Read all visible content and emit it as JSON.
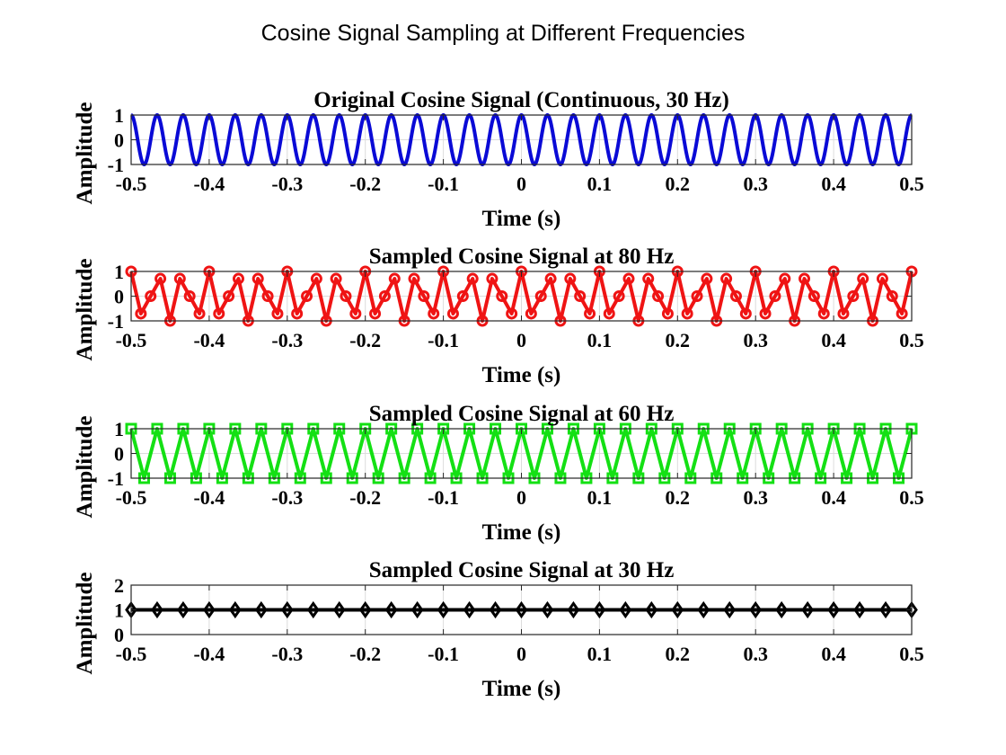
{
  "figure": {
    "title": "Cosine Signal Sampling at Different Frequencies"
  },
  "chart_data": [
    {
      "type": "line",
      "title": "Original Cosine Signal (Continuous, 30 Hz)",
      "xlabel": "Time (s)",
      "ylabel": "Amplitude",
      "xlim": [
        -0.5,
        0.5
      ],
      "ylim": [
        -1,
        1
      ],
      "xticks": [
        "-0.5",
        "-0.4",
        "-0.3",
        "-0.2",
        "-0.1",
        "0",
        "0.1",
        "0.2",
        "0.3",
        "0.4",
        "0.5"
      ],
      "yticks": [
        "-1",
        "0",
        "1"
      ],
      "grid": true,
      "series": [
        {
          "color": "#0a0ad6",
          "marker": "none",
          "signal": "cos",
          "frequency_hz": 30,
          "sample_rate_hz": null,
          "x_range": [
            -0.5,
            0.5
          ]
        }
      ]
    },
    {
      "type": "line",
      "title": "Sampled Cosine Signal at 80 Hz",
      "xlabel": "Time (s)",
      "ylabel": "Amplitude",
      "xlim": [
        -0.5,
        0.5
      ],
      "ylim": [
        -1,
        1
      ],
      "xticks": [
        "-0.5",
        "-0.4",
        "-0.3",
        "-0.2",
        "-0.1",
        "0",
        "0.1",
        "0.2",
        "0.3",
        "0.4",
        "0.5"
      ],
      "yticks": [
        "-1",
        "0",
        "1"
      ],
      "grid": true,
      "series": [
        {
          "color": "#ef1414",
          "marker": "circle",
          "signal": "cos",
          "frequency_hz": 30,
          "sample_rate_hz": 80,
          "x_range": [
            -0.5,
            0.5
          ]
        }
      ]
    },
    {
      "type": "line",
      "title": "Sampled Cosine Signal at 60 Hz",
      "xlabel": "Time (s)",
      "ylabel": "Amplitude",
      "xlim": [
        -0.5,
        0.5
      ],
      "ylim": [
        -1,
        1
      ],
      "xticks": [
        "-0.5",
        "-0.4",
        "-0.3",
        "-0.2",
        "-0.1",
        "0",
        "0.1",
        "0.2",
        "0.3",
        "0.4",
        "0.5"
      ],
      "yticks": [
        "-1",
        "0",
        "1"
      ],
      "grid": true,
      "series": [
        {
          "color": "#14e014",
          "marker": "square",
          "signal": "cos",
          "frequency_hz": 30,
          "sample_rate_hz": 60,
          "x_range": [
            -0.5,
            0.5
          ]
        }
      ]
    },
    {
      "type": "line",
      "title": "Sampled Cosine Signal at 30 Hz",
      "xlabel": "Time (s)",
      "ylabel": "Amplitude",
      "xlim": [
        -0.5,
        0.5
      ],
      "ylim": [
        0,
        2
      ],
      "xticks": [
        "-0.5",
        "-0.4",
        "-0.3",
        "-0.2",
        "-0.1",
        "0",
        "0.1",
        "0.2",
        "0.3",
        "0.4",
        "0.5"
      ],
      "yticks": [
        "0",
        "1",
        "2"
      ],
      "grid": true,
      "series": [
        {
          "color": "#000000",
          "marker": "diamond",
          "signal": "cos",
          "frequency_hz": 30,
          "sample_rate_hz": 30,
          "x_range": [
            -0.5,
            0.5
          ]
        }
      ]
    }
  ]
}
